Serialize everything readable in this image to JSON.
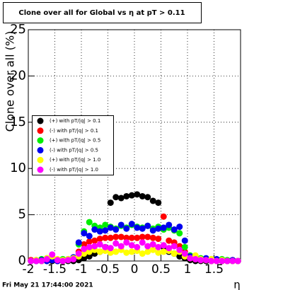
{
  "chart_data": {
    "type": "scatter",
    "title": "Clone  over all for Global vs   η at pT > 0.11",
    "y_label": "Clone  over all (%)",
    "x_label": "η",
    "footer": "Fri May 21 17:44:00 2021",
    "xlim": [
      -2,
      2
    ],
    "ylim": [
      0,
      25
    ],
    "xticks": [
      -2,
      -1.5,
      -1,
      -0.5,
      0,
      0.5,
      1,
      1.5
    ],
    "yticks": [
      0,
      5,
      10,
      15,
      20,
      25
    ],
    "grid": true,
    "legend": "left",
    "x": [
      -1.95,
      -1.85,
      -1.75,
      -1.65,
      -1.55,
      -1.45,
      -1.35,
      -1.25,
      -1.15,
      -1.05,
      -0.95,
      -0.85,
      -0.75,
      -0.65,
      -0.55,
      -0.45,
      -0.35,
      -0.25,
      -0.15,
      -0.05,
      0.05,
      0.15,
      0.25,
      0.35,
      0.45,
      0.55,
      0.65,
      0.75,
      0.85,
      0.95,
      1.05,
      1.15,
      1.25,
      1.35,
      1.45,
      1.55,
      1.65,
      1.75,
      1.85,
      1.95
    ],
    "series": [
      {
        "name": "(+) with pT/|q| > 0.1",
        "color": "#000000",
        "values": [
          0,
          0,
          0,
          0,
          0,
          0,
          0,
          0,
          0,
          0.1,
          0.3,
          0.5,
          0.8,
          1.0,
          1.5,
          6.3,
          6.9,
          6.8,
          7.0,
          7.1,
          7.2,
          7.0,
          6.9,
          6.5,
          6.3,
          1.5,
          1.0,
          0.8,
          0.5,
          0.3,
          0.1,
          0,
          0,
          0,
          0,
          0,
          0,
          0,
          0,
          0
        ]
      },
      {
        "name": "(-) with pT/|q| > 0.1",
        "color": "#ff0000",
        "values": [
          0.1,
          0.1,
          0,
          0.2,
          0.1,
          0,
          0,
          0.1,
          0.2,
          1.0,
          1.8,
          2.1,
          2.2,
          2.4,
          2.5,
          2.5,
          2.6,
          2.6,
          2.5,
          2.5,
          2.5,
          2.6,
          2.6,
          2.5,
          2.4,
          4.8,
          2.2,
          2.0,
          1.6,
          1.0,
          0.3,
          0.2,
          0.1,
          0.1,
          0,
          0.1,
          0,
          0,
          0.1,
          0
        ]
      },
      {
        "name": "(+) with pT/|q| > 0.5",
        "color": "#00ee00",
        "values": [
          0,
          0.1,
          0.2,
          0.3,
          0.2,
          0.1,
          0.2,
          0.1,
          0.3,
          1.8,
          3.2,
          4.2,
          3.8,
          3.6,
          3.9,
          3.7,
          3.5,
          3.8,
          3.6,
          3.9,
          3.7,
          3.6,
          3.8,
          3.5,
          3.7,
          3.4,
          3.6,
          3.3,
          3.0,
          1.5,
          0.6,
          0.4,
          0.3,
          0.2,
          0.2,
          0.1,
          0.2,
          0.1,
          0,
          0
        ]
      },
      {
        "name": "(-) with pT/|q| > 0.5",
        "color": "#0000ee",
        "values": [
          0,
          0,
          0.1,
          0,
          0.1,
          0,
          0.1,
          0.2,
          0.4,
          2.0,
          3.0,
          2.7,
          3.4,
          3.2,
          3.3,
          3.6,
          3.4,
          3.9,
          3.5,
          4.0,
          3.6,
          3.5,
          3.8,
          3.3,
          3.5,
          3.6,
          3.9,
          3.4,
          3.7,
          2.2,
          0.5,
          0.3,
          0.2,
          0.3,
          0.1,
          0.2,
          0.1,
          0,
          0.1,
          0
        ]
      },
      {
        "name": "(+) with pT/|q| > 1.0",
        "color": "#ffff00",
        "values": [
          0,
          0.1,
          0,
          0.3,
          0.5,
          0.2,
          0.1,
          0.2,
          0.3,
          0.5,
          0.8,
          1.0,
          1.2,
          1.0,
          1.1,
          0.9,
          1.0,
          1.2,
          0.9,
          1.0,
          1.1,
          0.8,
          1.0,
          1.2,
          0.9,
          1.0,
          1.1,
          0.8,
          1.0,
          0.5,
          0.3,
          0.6,
          0.2,
          0.1,
          0.2,
          0,
          0.1,
          0,
          0,
          0
        ]
      },
      {
        "name": "(-) with pT/|q| > 1.0",
        "color": "#ff00ff",
        "values": [
          0,
          0,
          0,
          0.2,
          0.7,
          0.1,
          0,
          0.1,
          0.2,
          0.8,
          1.3,
          1.5,
          1.6,
          1.8,
          1.5,
          1.4,
          1.9,
          1.6,
          2.0,
          1.7,
          1.5,
          2.0,
          1.6,
          1.8,
          1.5,
          1.7,
          1.4,
          1.6,
          1.2,
          0.8,
          0.3,
          0.2,
          0.1,
          0.1,
          0,
          0,
          0,
          0,
          0,
          0
        ]
      }
    ]
  }
}
